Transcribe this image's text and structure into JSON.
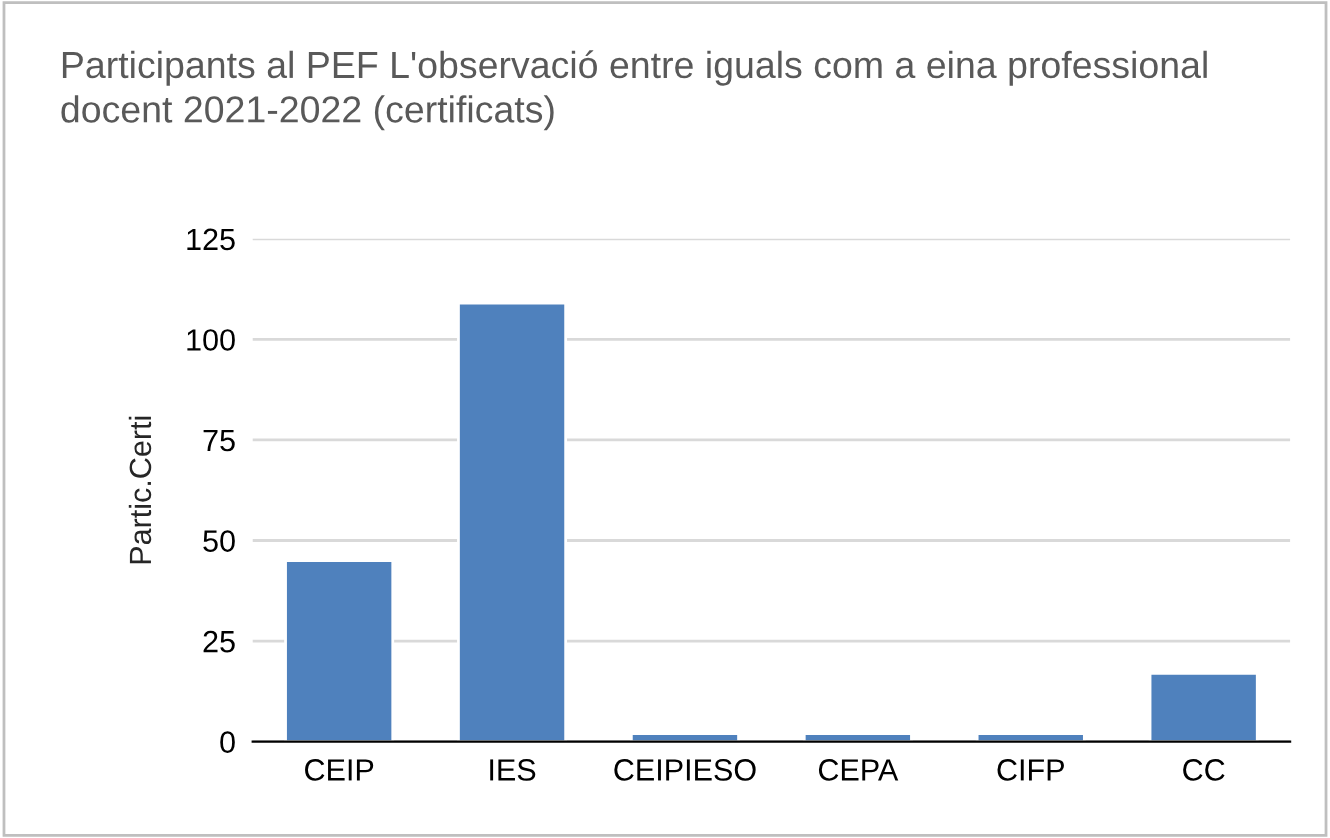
{
  "chart_data": {
    "type": "bar",
    "title": "Participants al PEF L'observació entre iguals com a eina professional docent 2021-2022 (certificats)",
    "ylabel": "Partic.Certi",
    "categories": [
      "CEIP",
      "IES",
      "CEIPIESO",
      "CEPA",
      "CIFP",
      "CC"
    ],
    "values": [
      45,
      109,
      2,
      2,
      2,
      17
    ],
    "color": "#4f81bd",
    "ylim": [
      0,
      125
    ],
    "yticks": [
      0,
      25,
      50,
      75,
      100,
      125
    ],
    "grid": "y"
  }
}
